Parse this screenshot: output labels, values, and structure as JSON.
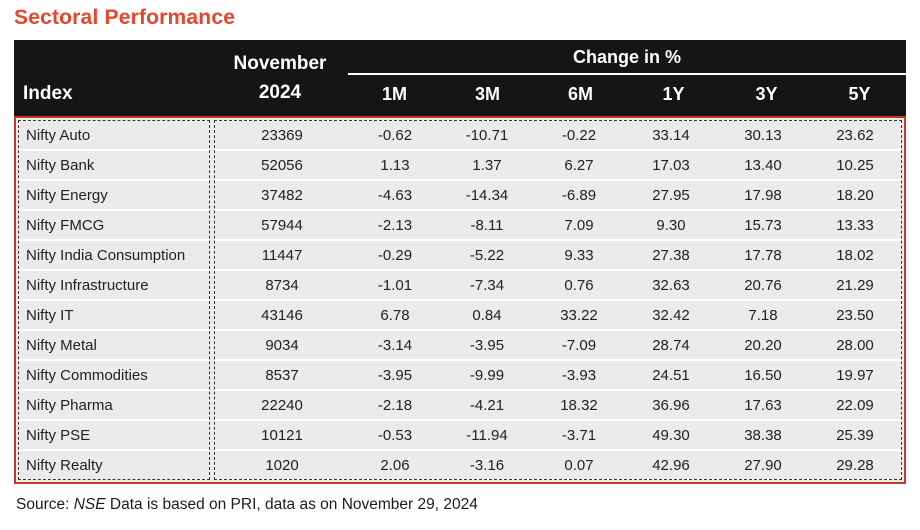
{
  "title": "Sectoral Performance",
  "table": {
    "header": {
      "index_label": "Index",
      "period_label": "November 2024",
      "change_label": "Change in %",
      "columns": [
        "1M",
        "3M",
        "6M",
        "1Y",
        "3Y",
        "5Y"
      ]
    },
    "rows": [
      {
        "index": "Nifty Auto",
        "value": "23369",
        "changes": [
          "-0.62",
          "-10.71",
          "-0.22",
          "33.14",
          "30.13",
          "23.62"
        ]
      },
      {
        "index": "Nifty Bank",
        "value": "52056",
        "changes": [
          "1.13",
          "1.37",
          "6.27",
          "17.03",
          "13.40",
          "10.25"
        ]
      },
      {
        "index": "Nifty Energy",
        "value": "37482",
        "changes": [
          "-4.63",
          "-14.34",
          "-6.89",
          "27.95",
          "17.98",
          "18.20"
        ]
      },
      {
        "index": "Nifty FMCG",
        "value": "57944",
        "changes": [
          "-2.13",
          "-8.11",
          "7.09",
          "9.30",
          "15.73",
          "13.33"
        ]
      },
      {
        "index": "Nifty India Consumption",
        "value": "11447",
        "changes": [
          "-0.29",
          "-5.22",
          "9.33",
          "27.38",
          "17.78",
          "18.02"
        ]
      },
      {
        "index": "Nifty Infrastructure",
        "value": "8734",
        "changes": [
          "-1.01",
          "-7.34",
          "0.76",
          "32.63",
          "20.76",
          "21.29"
        ]
      },
      {
        "index": "Nifty IT",
        "value": "43146",
        "changes": [
          "6.78",
          "0.84",
          "33.22",
          "32.42",
          "7.18",
          "23.50"
        ]
      },
      {
        "index": "Nifty Metal",
        "value": "9034",
        "changes": [
          "-3.14",
          "-3.95",
          "-7.09",
          "28.74",
          "20.20",
          "28.00"
        ]
      },
      {
        "index": "Nifty Commodities",
        "value": "8537",
        "changes": [
          "-3.95",
          "-9.99",
          "-3.93",
          "24.51",
          "16.50",
          "19.97"
        ]
      },
      {
        "index": "Nifty Pharma",
        "value": "22240",
        "changes": [
          "-2.18",
          "-4.21",
          "18.32",
          "36.96",
          "17.63",
          "22.09"
        ]
      },
      {
        "index": "Nifty PSE",
        "value": "10121",
        "changes": [
          "-0.53",
          "-11.94",
          "-3.71",
          "49.30",
          "38.38",
          "25.39"
        ]
      },
      {
        "index": "Nifty Realty",
        "value": "1020",
        "changes": [
          "2.06",
          "-3.16",
          "0.07",
          "42.96",
          "27.90",
          "29.28"
        ]
      }
    ]
  },
  "footer": {
    "prefix": "Source: ",
    "source_name": "NSE",
    "suffix": " Data is based on PRI, data as on November 29, 2024"
  },
  "colors": {
    "accent": "#E4472C",
    "table_border": "#C23B22",
    "header_bg": "#151515",
    "row_bg": "#EBEBEB"
  }
}
